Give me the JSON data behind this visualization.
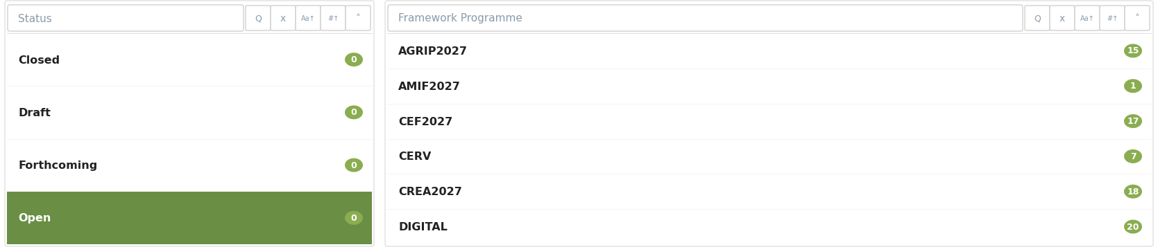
{
  "panel1": {
    "title": "Status",
    "items": [
      "Closed",
      "Draft",
      "Forthcoming",
      "Open"
    ],
    "counts": [
      "0",
      "0",
      "0",
      "0"
    ],
    "selected_index": 3,
    "selected_bg": "#6b8e45",
    "selected_text": "#ffffff",
    "normal_text": "#222222",
    "title_color": "#8a9baa",
    "badge_color": "#8aad50",
    "badge_text_color": "#ffffff",
    "panel_bg": "#ffffff",
    "panel_border": "#e0e0e0",
    "separator_color": "#e0e0e0"
  },
  "panel2": {
    "title": "Framework Programme",
    "items": [
      "AGRIP2027",
      "AMIF2027",
      "CEF2027",
      "CERV",
      "CREA2027",
      "DIGITAL"
    ],
    "counts": [
      "15",
      "1",
      "17",
      "7",
      "18",
      "20"
    ],
    "selected_index": -1,
    "selected_bg": "#6b8e45",
    "selected_text": "#ffffff",
    "normal_text": "#222222",
    "title_color": "#8a9baa",
    "badge_color": "#8aad50",
    "badge_text_color": "#ffffff",
    "panel_bg": "#ffffff",
    "panel_border": "#e0e0e0",
    "separator_color": "#e0e0e0"
  },
  "bg_color": "#ffffff",
  "button_color": "#8a9baa",
  "button_border": "#d0d0d0",
  "button_bg": "#ffffff",
  "item_fontsize": 11.5,
  "title_fontsize": 11,
  "badge_fontsize": 9,
  "item_font_weight": "bold"
}
